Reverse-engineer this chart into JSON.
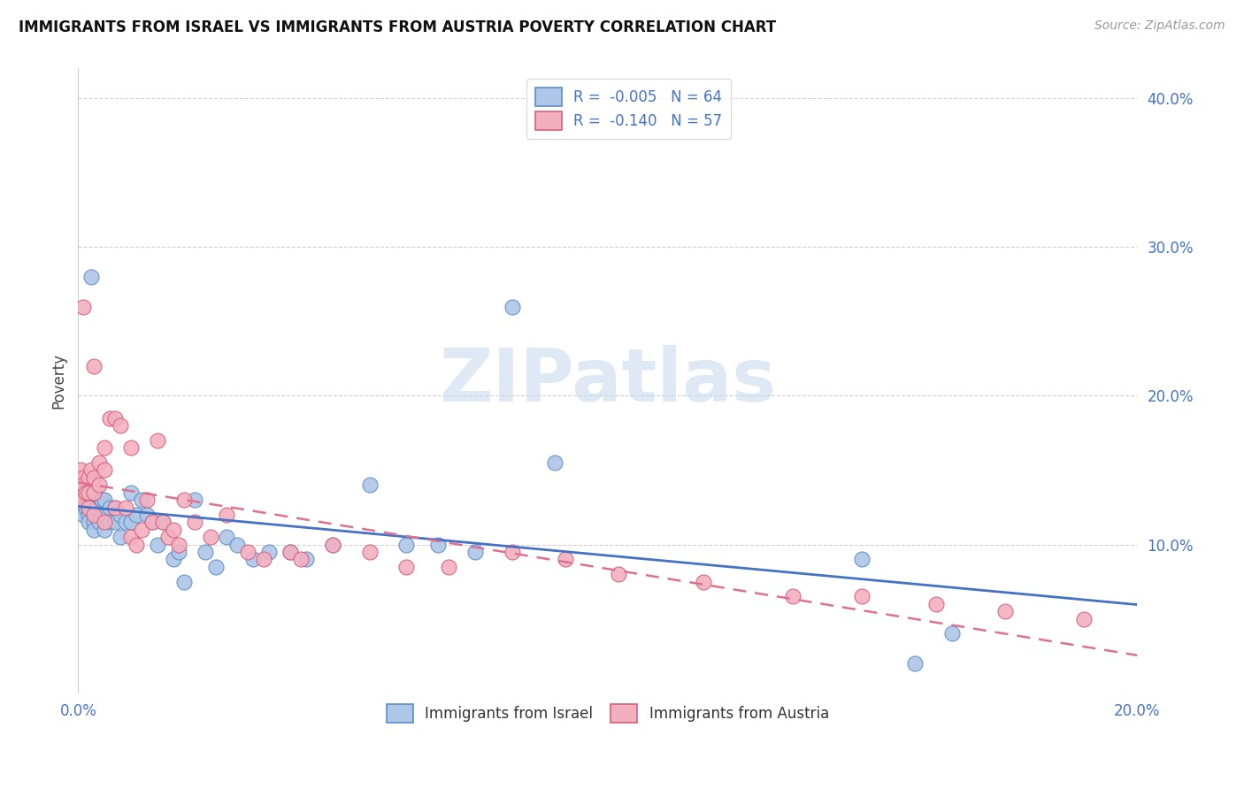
{
  "title": "IMMIGRANTS FROM ISRAEL VS IMMIGRANTS FROM AUSTRIA POVERTY CORRELATION CHART",
  "source": "Source: ZipAtlas.com",
  "ylabel": "Poverty",
  "xlim": [
    0.0,
    0.2
  ],
  "ylim": [
    0.0,
    0.42
  ],
  "xticks": [
    0.0,
    0.2
  ],
  "xtick_labels": [
    "0.0%",
    "20.0%"
  ],
  "yticks": [
    0.1,
    0.2,
    0.3,
    0.4
  ],
  "ytick_labels": [
    "10.0%",
    "20.0%",
    "30.0%",
    "40.0%"
  ],
  "israel_color": "#aec6e8",
  "austria_color": "#f2afc0",
  "israel_edge_color": "#5b8ec4",
  "austria_edge_color": "#d4607a",
  "israel_line_color": "#4472c4",
  "austria_line_color": "#e07090",
  "israel_R": -0.005,
  "israel_N": 64,
  "austria_R": -0.14,
  "austria_N": 57,
  "watermark_text": "ZIPatlas",
  "legend_israel_label": "R =  -0.005   N = 64",
  "legend_austria_label": "R =  -0.140   N = 57",
  "bottom_legend_israel": "Immigrants from Israel",
  "bottom_legend_austria": "Immigrants from Austria",
  "israel_x": [
    0.0005,
    0.0005,
    0.001,
    0.001,
    0.001,
    0.001,
    0.001,
    0.0015,
    0.0015,
    0.002,
    0.002,
    0.002,
    0.002,
    0.0025,
    0.0025,
    0.003,
    0.003,
    0.003,
    0.003,
    0.003,
    0.0035,
    0.004,
    0.004,
    0.0045,
    0.005,
    0.005,
    0.005,
    0.006,
    0.006,
    0.007,
    0.007,
    0.008,
    0.008,
    0.009,
    0.01,
    0.01,
    0.011,
    0.012,
    0.013,
    0.014,
    0.015,
    0.016,
    0.018,
    0.019,
    0.02,
    0.022,
    0.024,
    0.026,
    0.028,
    0.03,
    0.033,
    0.036,
    0.04,
    0.043,
    0.048,
    0.055,
    0.062,
    0.068,
    0.075,
    0.082,
    0.09,
    0.148,
    0.158,
    0.165
  ],
  "israel_y": [
    0.135,
    0.13,
    0.14,
    0.135,
    0.13,
    0.125,
    0.12,
    0.135,
    0.125,
    0.13,
    0.125,
    0.12,
    0.115,
    0.28,
    0.125,
    0.13,
    0.125,
    0.12,
    0.115,
    0.11,
    0.125,
    0.125,
    0.115,
    0.13,
    0.13,
    0.12,
    0.11,
    0.125,
    0.115,
    0.125,
    0.115,
    0.12,
    0.105,
    0.115,
    0.135,
    0.115,
    0.12,
    0.13,
    0.12,
    0.115,
    0.1,
    0.115,
    0.09,
    0.095,
    0.075,
    0.13,
    0.095,
    0.085,
    0.105,
    0.1,
    0.09,
    0.095,
    0.095,
    0.09,
    0.1,
    0.14,
    0.1,
    0.1,
    0.095,
    0.26,
    0.155,
    0.09,
    0.02,
    0.04
  ],
  "austria_x": [
    0.0005,
    0.0005,
    0.001,
    0.001,
    0.001,
    0.001,
    0.0015,
    0.002,
    0.002,
    0.002,
    0.0025,
    0.003,
    0.003,
    0.003,
    0.003,
    0.004,
    0.004,
    0.005,
    0.005,
    0.005,
    0.006,
    0.007,
    0.007,
    0.008,
    0.009,
    0.01,
    0.01,
    0.011,
    0.012,
    0.013,
    0.014,
    0.015,
    0.016,
    0.017,
    0.018,
    0.019,
    0.02,
    0.022,
    0.025,
    0.028,
    0.032,
    0.035,
    0.04,
    0.042,
    0.048,
    0.055,
    0.062,
    0.07,
    0.082,
    0.092,
    0.102,
    0.118,
    0.135,
    0.148,
    0.162,
    0.175,
    0.19
  ],
  "austria_y": [
    0.15,
    0.135,
    0.26,
    0.145,
    0.14,
    0.13,
    0.135,
    0.145,
    0.135,
    0.125,
    0.15,
    0.22,
    0.145,
    0.135,
    0.12,
    0.155,
    0.14,
    0.165,
    0.15,
    0.115,
    0.185,
    0.185,
    0.125,
    0.18,
    0.125,
    0.165,
    0.105,
    0.1,
    0.11,
    0.13,
    0.115,
    0.17,
    0.115,
    0.105,
    0.11,
    0.1,
    0.13,
    0.115,
    0.105,
    0.12,
    0.095,
    0.09,
    0.095,
    0.09,
    0.1,
    0.095,
    0.085,
    0.085,
    0.095,
    0.09,
    0.08,
    0.075,
    0.065,
    0.065,
    0.06,
    0.055,
    0.05
  ]
}
